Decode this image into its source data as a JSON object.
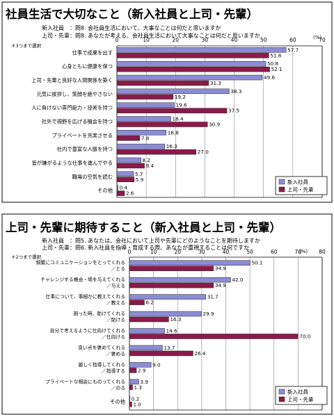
{
  "chart_data": [
    {
      "type": "bar",
      "title": "社員生活で大切なこと（新入社員と上司・先輩）",
      "questions": [
        "新入社員　：問8. 会社員生活において、大事なことは何だと思いますか",
        "上司・先輩：問8. あなたが考える、会社員生活において大事なことは何だと思いますか"
      ],
      "note": "＊3つまで選択",
      "unit": "(%)",
      "xlim": [
        0,
        70
      ],
      "ticks": [
        0,
        10,
        20,
        30,
        40,
        50,
        60,
        70
      ],
      "categories": [
        [
          "仕事で成果を出す"
        ],
        [
          "心身ともに健康を保つ"
        ],
        [
          "上司・先輩と良好な人間関係を築く"
        ],
        [
          "元気に挨拶し、笑顔を絶やさない"
        ],
        [
          "人に負けない専門能力・技術を持つ"
        ],
        [
          "社外で視野を広げる機会を持つ"
        ],
        [
          "プライベートを充実させる"
        ],
        [
          "社内で豊富な人脈を持つ"
        ],
        [
          "皆が嫌がるような仕事を進んでやる"
        ],
        [
          "職場の空気を読む"
        ],
        [
          "その他"
        ]
      ],
      "series": [
        {
          "name": "新入社員",
          "color": "#8c8cd6",
          "values": [
            57.7,
            50.8,
            49.6,
            38.3,
            19.6,
            18.4,
            16.8,
            16.3,
            8.2,
            5.7,
            0.4
          ]
        },
        {
          "name": "上司・先輩",
          "color": "#8b1a4a",
          "values": [
            51.8,
            52.1,
            31.3,
            19.2,
            37.5,
            30.9,
            7.8,
            27.0,
            9.4,
            5.9,
            2.6
          ]
        }
      ],
      "legend": "bottom-right"
    },
    {
      "type": "bar",
      "title": "上司・先輩に期待すること（新入社員と上司・先輩）",
      "questions": [
        "新入社員　：問5. あなたは、会社において上司や先輩にどのようなことを期待しますか",
        "上司・先輩：問6. 新入社員を指導・育成する際、あなたが重視することは何ですか"
      ],
      "note": "＊2つまで選択",
      "unit": "(%)",
      "xlim": [
        0,
        80
      ],
      "ticks": [
        0,
        10,
        20,
        30,
        40,
        50,
        60,
        70,
        80
      ],
      "categories": [
        [
          "頻繁にコミュニケーションをとってくれる",
          "／とる"
        ],
        [
          "チャレンジする機会・場を与えてくれる",
          "／与える"
        ],
        [
          "仕事について、事細かに教えてくれる",
          "／教える"
        ],
        [
          "困った時、助けてくれる",
          "／助ける"
        ],
        [
          "自分で考えるように仕向けてくれる",
          "／仕向ける"
        ],
        [
          "良い点を褒めてくれる",
          "／褒める"
        ],
        [
          "厳しく指導してくれる",
          "／指導する"
        ],
        [
          "プライベートな相談にものってくれる",
          "／のる"
        ],
        [
          "その他"
        ]
      ],
      "series": [
        {
          "name": "新入社員",
          "color": "#8c8cd6",
          "values": [
            50.1,
            42.0,
            31.7,
            29.9,
            14.6,
            13.7,
            9.0,
            3.9,
            0.2
          ]
        },
        {
          "name": "上司・先輩",
          "color": "#8b1a4a",
          "values": [
            34.9,
            34.9,
            6.2,
            16.3,
            70.0,
            26.4,
            2.9,
            1.3,
            1.0
          ]
        }
      ],
      "legend": "bottom-right"
    }
  ]
}
